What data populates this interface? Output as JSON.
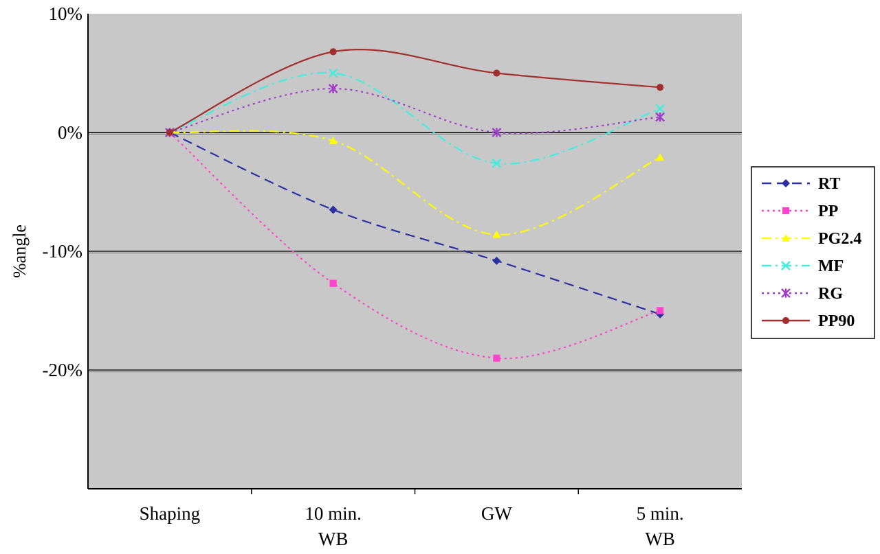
{
  "chart_data": {
    "type": "line",
    "title": "",
    "xlabel": "",
    "ylabel": "%angle",
    "categories": [
      [
        "Shaping"
      ],
      [
        "10 min.",
        "WB"
      ],
      [
        "GW"
      ],
      [
        "5 min.",
        "WB"
      ]
    ],
    "y_ticks": [
      {
        "value": 10,
        "label": "10%"
      },
      {
        "value": 0,
        "label": "0%"
      },
      {
        "value": -10,
        "label": "-10%"
      },
      {
        "value": -20,
        "label": "-20%"
      }
    ],
    "ylim": [
      -30,
      10
    ],
    "grid": "horizontal at 0, -10, -20",
    "legend_position": "right",
    "plot_background": "#c8c8c8",
    "series": [
      {
        "name": "RT",
        "color": "#2b2fa0",
        "dash": "dashed",
        "marker": "diamond",
        "values": [
          0,
          -6.5,
          -10.8,
          -15.3
        ]
      },
      {
        "name": "PP",
        "color": "#ff44cc",
        "dash": "dotted",
        "marker": "square",
        "values": [
          0,
          -12.7,
          -19.0,
          -15.0
        ]
      },
      {
        "name": "PG2.4",
        "color": "#ffff00",
        "dash": "dashdot",
        "marker": "triangle",
        "values": [
          0,
          -0.7,
          -8.6,
          -2.1
        ]
      },
      {
        "name": "MF",
        "color": "#44eedd",
        "dash": "dashdot",
        "marker": "x",
        "values": [
          0,
          5.0,
          -2.6,
          2.0
        ]
      },
      {
        "name": "RG",
        "color": "#a040c8",
        "dash": "dotted",
        "marker": "star",
        "values": [
          0,
          3.7,
          0,
          1.3
        ]
      },
      {
        "name": "PP90",
        "color": "#a03030",
        "dash": "solid",
        "marker": "circle",
        "values": [
          0,
          6.8,
          5.0,
          3.8
        ]
      }
    ]
  }
}
